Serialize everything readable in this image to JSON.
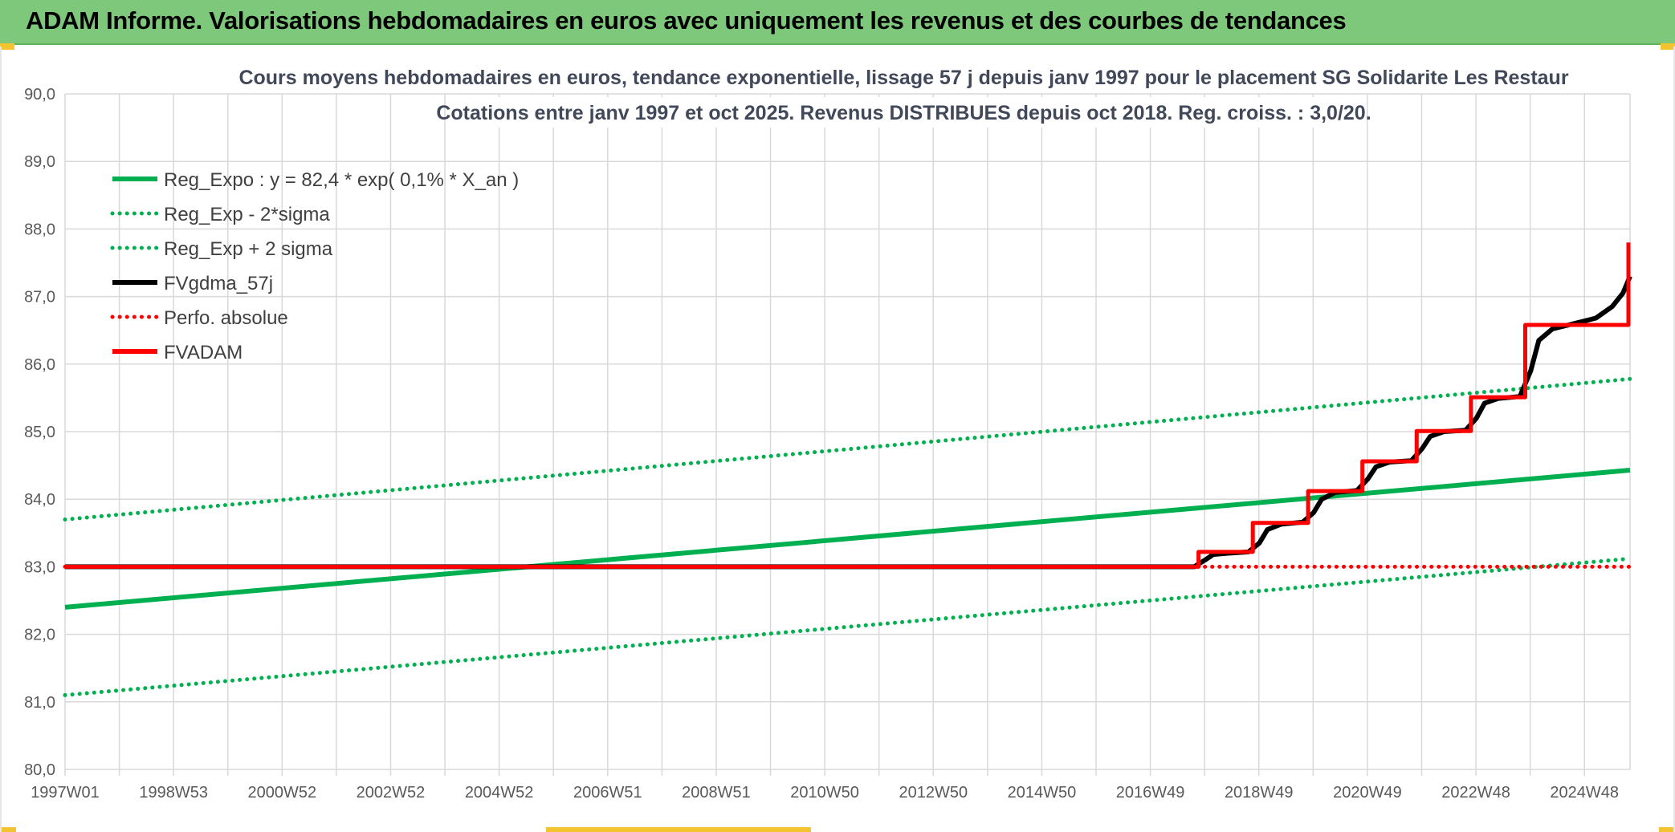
{
  "header": {
    "title": "ADAM Informe. Valorisations hebdomadaires en euros avec uniquement les revenus et des courbes de tendances"
  },
  "colors": {
    "header_bg": "#7dc87a",
    "trend_green": "#00b050",
    "black_line": "#000000",
    "red_line": "#ff0000",
    "grid": "#d9d9d9"
  },
  "chart_data": {
    "type": "line",
    "title": [
      "Cours moyens hebdomadaires en euros, tendance exponentielle, lissage 57 j depuis janv 1997 pour le placement SG Solidarite Les Restaur",
      "Cotations entre janv 1997 et oct 2025. Revenus DISTRIBUES depuis oct 2018. Reg. croiss. : 3,0/20."
    ],
    "xlabel": "",
    "ylabel": "",
    "x_ticks": [
      "1997W01",
      "1998W53",
      "2000W52",
      "2002W52",
      "2004W52",
      "2006W51",
      "2008W51",
      "2010W50",
      "2012W50",
      "2014W50",
      "2016W49",
      "2018W49",
      "2020W49",
      "2022W48",
      "2024W48"
    ],
    "x_range": [
      1997.0,
      2025.83
    ],
    "ylim": [
      80.0,
      90.0
    ],
    "y_ticks": [
      "80,0",
      "81,0",
      "82,0",
      "83,0",
      "84,0",
      "85,0",
      "86,0",
      "87,0",
      "88,0",
      "89,0",
      "90,0"
    ],
    "grid": true,
    "legend_position": "top-left",
    "series": [
      {
        "name": "Reg_Expo : y = 82,4 * exp( 0,1% *  X_an )",
        "style": "solid",
        "color": "#00b050",
        "points": [
          [
            1997.0,
            82.4
          ],
          [
            2025.83,
            84.43
          ]
        ]
      },
      {
        "name": "Reg_Exp - 2*sigma",
        "style": "dotted",
        "color": "#00b050",
        "points": [
          [
            1997.0,
            81.1
          ],
          [
            2025.83,
            83.12
          ]
        ]
      },
      {
        "name": "Reg_Exp + 2 sigma",
        "style": "dotted",
        "color": "#00b050",
        "points": [
          [
            1997.0,
            83.7
          ],
          [
            2025.83,
            85.78
          ]
        ]
      },
      {
        "name": "FVgdma_57j",
        "style": "solid",
        "color": "#000000",
        "points": [
          [
            1997.0,
            83.0
          ],
          [
            2017.8,
            83.0
          ],
          [
            2018.0,
            83.1
          ],
          [
            2018.15,
            83.18
          ],
          [
            2018.4,
            83.2
          ],
          [
            2018.8,
            83.22
          ],
          [
            2019.0,
            83.35
          ],
          [
            2019.15,
            83.55
          ],
          [
            2019.4,
            83.63
          ],
          [
            2019.8,
            83.66
          ],
          [
            2020.0,
            83.8
          ],
          [
            2020.15,
            84.0
          ],
          [
            2020.4,
            84.1
          ],
          [
            2020.8,
            84.13
          ],
          [
            2021.0,
            84.3
          ],
          [
            2021.15,
            84.48
          ],
          [
            2021.4,
            84.55
          ],
          [
            2021.8,
            84.57
          ],
          [
            2022.0,
            84.75
          ],
          [
            2022.15,
            84.93
          ],
          [
            2022.4,
            85.0
          ],
          [
            2022.8,
            85.02
          ],
          [
            2023.0,
            85.2
          ],
          [
            2023.15,
            85.42
          ],
          [
            2023.4,
            85.49
          ],
          [
            2023.8,
            85.52
          ],
          [
            2024.0,
            85.9
          ],
          [
            2024.15,
            86.35
          ],
          [
            2024.4,
            86.52
          ],
          [
            2024.8,
            86.6
          ],
          [
            2025.2,
            86.68
          ],
          [
            2025.5,
            86.85
          ],
          [
            2025.7,
            87.05
          ],
          [
            2025.83,
            87.3
          ]
        ]
      },
      {
        "name": "Perfo. absolue",
        "style": "dotted",
        "color": "#ff0000",
        "points": [
          [
            1997.0,
            83.0
          ],
          [
            2025.83,
            83.0
          ]
        ]
      },
      {
        "name": "FVADAM",
        "style": "step",
        "color": "#ff0000",
        "points": [
          [
            1997.0,
            83.0
          ],
          [
            2017.88,
            83.0
          ],
          [
            2017.88,
            83.22
          ],
          [
            2018.88,
            83.22
          ],
          [
            2018.88,
            83.65
          ],
          [
            2019.9,
            83.65
          ],
          [
            2019.9,
            84.12
          ],
          [
            2020.9,
            84.12
          ],
          [
            2020.9,
            84.56
          ],
          [
            2021.9,
            84.56
          ],
          [
            2021.9,
            85.01
          ],
          [
            2022.9,
            85.01
          ],
          [
            2022.9,
            85.51
          ],
          [
            2023.9,
            85.51
          ],
          [
            2023.9,
            86.58
          ],
          [
            2025.8,
            86.58
          ],
          [
            2025.8,
            87.8
          ]
        ]
      }
    ]
  }
}
